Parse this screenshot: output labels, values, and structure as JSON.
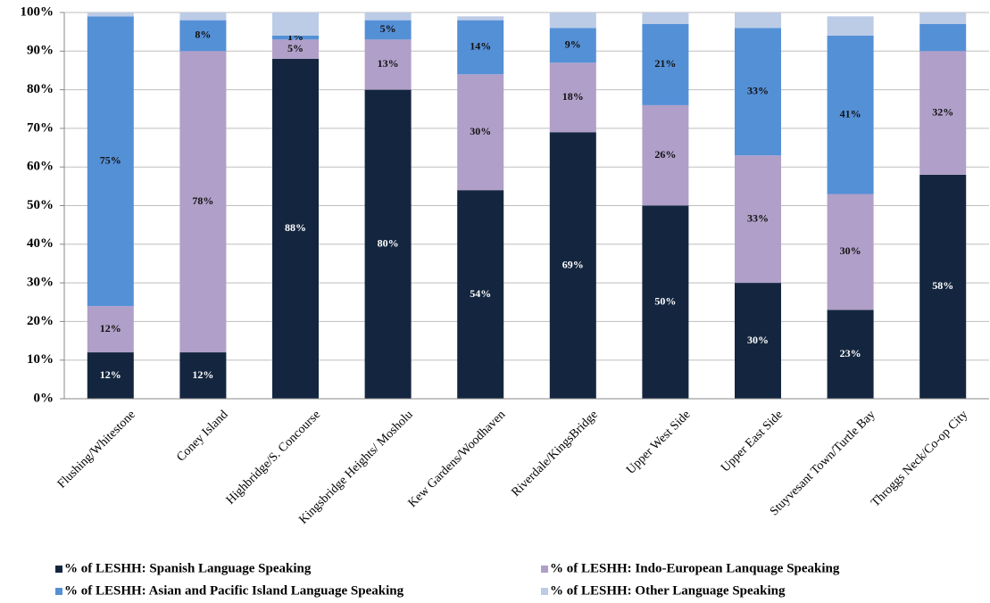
{
  "chart_data": {
    "type": "stacked_bar",
    "categories": [
      "Flushing/Whitestone",
      "Coney Island",
      "Highbridge/S. Concourse",
      "Kingsbridge Heights/ Mosholu",
      "Kew Gardens/Woodhaven",
      "Riverdale/KingsBridge",
      "Upper West Side",
      "Upper East Side",
      "Stuyvesant Town/Turtle Bay",
      "Throggs Neck/Co-op City"
    ],
    "series": [
      {
        "name": "% of LESHH: Spanish Language Speaking",
        "color": "#14263f",
        "label_color": "#ffffff",
        "values": [
          12,
          12,
          88,
          80,
          54,
          69,
          50,
          30,
          23,
          58
        ],
        "value_labels": [
          "12%",
          "12%",
          "88%",
          "80%",
          "54%",
          "69%",
          "50%",
          "30%",
          "23%",
          "58%"
        ]
      },
      {
        "name": "% of LESHH: Indo-European Lanquage Speaking",
        "color": "#b09fc8",
        "label_color": "#111111",
        "values": [
          12,
          78,
          5,
          13,
          30,
          18,
          26,
          33,
          30,
          32
        ],
        "value_labels": [
          "12%",
          "78%",
          "5%",
          "13%",
          "30%",
          "18%",
          "26%",
          "33%",
          "30%",
          "32%"
        ]
      },
      {
        "name": "% of LESHH: Asian and Pacific Island Language Speaking",
        "color": "#5490d6",
        "label_color": "#111111",
        "values": [
          75,
          8,
          1,
          5,
          14,
          9,
          21,
          33,
          41,
          7
        ],
        "value_labels": [
          "75%",
          "8%",
          "1%",
          "5%",
          "14%",
          "9%",
          "21%",
          "33%",
          "41%",
          null
        ]
      },
      {
        "name": "% of LESHH: Other Language Speaking",
        "color": "#bccbe6",
        "values": [
          1,
          2,
          6,
          2,
          1,
          4,
          3,
          4,
          5,
          3
        ]
      }
    ],
    "ylim": [
      0,
      100
    ],
    "yticks": [
      {
        "value": 0,
        "label": "0%"
      },
      {
        "value": 10,
        "label": "10%"
      },
      {
        "value": 20,
        "label": "20%"
      },
      {
        "value": 30,
        "label": "30%"
      },
      {
        "value": 40,
        "label": "40%"
      },
      {
        "value": 50,
        "label": "50%"
      },
      {
        "value": 60,
        "label": "60%"
      },
      {
        "value": 70,
        "label": "70%"
      },
      {
        "value": 80,
        "label": "80%"
      },
      {
        "value": 90,
        "label": "90%"
      },
      {
        "value": 100,
        "label": "100%"
      }
    ],
    "grid": true,
    "legend": "bottom"
  }
}
